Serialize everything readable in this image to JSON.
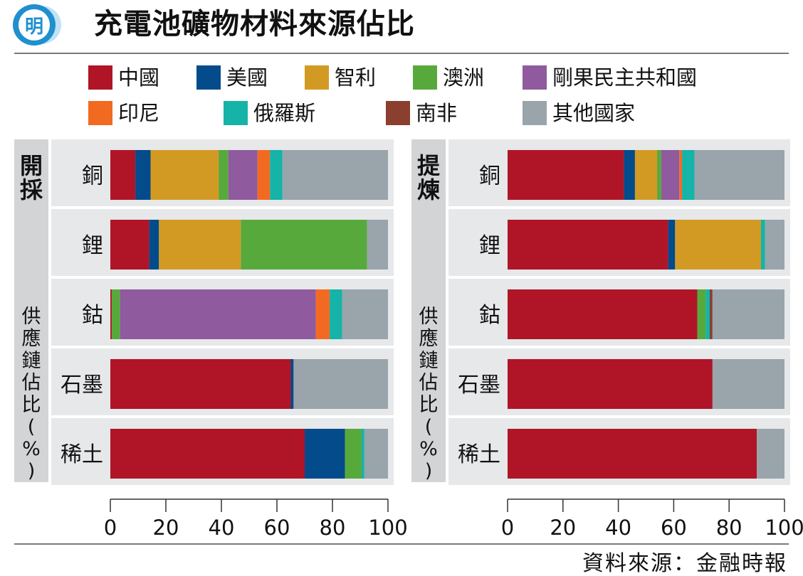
{
  "title": "充電池礦物材料來源佔比",
  "logo_text": "明",
  "source": "資料來源：金融時報",
  "colors": {
    "china": "#b01527",
    "usa": "#034b8b",
    "chile": "#d39a23",
    "australia": "#58a93c",
    "drc": "#8f5a9e",
    "indonesia": "#f26a21",
    "russia": "#15b3a8",
    "south_africa": "#8b3f2f",
    "others": "#9aa4ab",
    "panel_bg": "#e6e8ea",
    "label_bg": "#d2d4d6"
  },
  "chart_data": [
    {
      "type": "bar",
      "orientation": "horizontal",
      "stacked": true,
      "title": "開採",
      "ylabel": "供應鏈佔比(%)",
      "categories": [
        "銅",
        "鋰",
        "鈷",
        "石墨",
        "稀土"
      ],
      "xlim": [
        0,
        100
      ],
      "xticks": [
        "0",
        "20",
        "40",
        "60",
        "80",
        "100"
      ],
      "series": [
        {
          "name": "中國",
          "values": [
            9,
            14,
            0.5,
            65,
            70
          ]
        },
        {
          "name": "美國",
          "values": [
            5.5,
            3.5,
            0,
            1,
            14.5
          ]
        },
        {
          "name": "智利",
          "values": [
            24.5,
            29.5,
            0,
            0,
            0
          ]
        },
        {
          "name": "澳洲",
          "values": [
            3.5,
            45.5,
            3,
            0,
            6
          ]
        },
        {
          "name": "剛果民主共和國",
          "values": [
            10.5,
            0,
            70.5,
            0,
            0
          ]
        },
        {
          "name": "印尼",
          "values": [
            4.5,
            0,
            5,
            0,
            0
          ]
        },
        {
          "name": "俄羅斯",
          "values": [
            4.5,
            0,
            4.5,
            0,
            1
          ]
        },
        {
          "name": "南非",
          "values": [
            0,
            0,
            0,
            0,
            0
          ]
        },
        {
          "name": "其他國家",
          "values": [
            38,
            7.5,
            16.5,
            34,
            8.5
          ]
        }
      ]
    },
    {
      "type": "bar",
      "orientation": "horizontal",
      "stacked": true,
      "title": "提煉",
      "ylabel": "供應鏈佔比(%)",
      "categories": [
        "銅",
        "鋰",
        "鈷",
        "石墨",
        "稀土"
      ],
      "xlim": [
        0,
        100
      ],
      "xticks": [
        "0",
        "20",
        "40",
        "60",
        "80",
        "100"
      ],
      "series": [
        {
          "name": "中國",
          "values": [
            42,
            58,
            68.5,
            74,
            90
          ]
        },
        {
          "name": "美國",
          "values": [
            4,
            2.5,
            0,
            0,
            0
          ]
        },
        {
          "name": "智利",
          "values": [
            8,
            31,
            0,
            0,
            0
          ]
        },
        {
          "name": "澳洲",
          "values": [
            1.5,
            0,
            3,
            0,
            0
          ]
        },
        {
          "name": "剛果民主共和國",
          "values": [
            6.5,
            0,
            0,
            0,
            0
          ]
        },
        {
          "name": "印尼",
          "values": [
            1,
            0,
            0,
            0,
            0
          ]
        },
        {
          "name": "俄羅斯",
          "values": [
            4.5,
            1.5,
            1.5,
            0,
            0
          ]
        },
        {
          "name": "南非",
          "values": [
            0,
            0,
            1,
            0,
            0
          ]
        },
        {
          "name": "其他國家",
          "values": [
            32.5,
            7,
            26,
            26,
            10
          ]
        }
      ]
    }
  ]
}
